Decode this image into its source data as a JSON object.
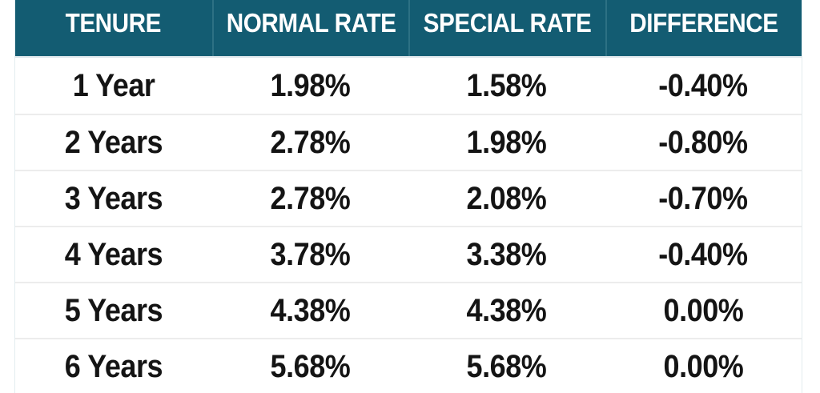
{
  "table": {
    "columns": [
      {
        "key": "tenure",
        "label": "TENURE"
      },
      {
        "key": "normal_rate",
        "label": "NORMAL RATE"
      },
      {
        "key": "special_rate",
        "label": "SPECIAL RATE"
      },
      {
        "key": "difference",
        "label": "DIFFERENCE"
      }
    ],
    "rows": [
      {
        "tenure": "1 Year",
        "normal_rate": "1.98%",
        "special_rate": "1.58%",
        "difference": "-0.40%"
      },
      {
        "tenure": "2 Years",
        "normal_rate": "2.78%",
        "special_rate": "1.98%",
        "difference": "-0.80%"
      },
      {
        "tenure": "3 Years",
        "normal_rate": "2.78%",
        "special_rate": "2.08%",
        "difference": "-0.70%"
      },
      {
        "tenure": "4 Years",
        "normal_rate": "3.78%",
        "special_rate": "3.38%",
        "difference": "-0.40%"
      },
      {
        "tenure": "5 Years",
        "normal_rate": "4.38%",
        "special_rate": "4.38%",
        "difference": "0.00%"
      },
      {
        "tenure": "6 Years",
        "normal_rate": "5.68%",
        "special_rate": "5.68%",
        "difference": "0.00%"
      }
    ]
  },
  "colors": {
    "header_bg": "#135C72",
    "header_text": "#FFFFFF",
    "header_divider": "#2D7184",
    "row_divider": "#ECECEC",
    "body_text": "#141414"
  },
  "chart_data": {
    "type": "table",
    "title": "",
    "categories": [
      "1 Year",
      "2 Years",
      "3 Years",
      "4 Years",
      "5 Years",
      "6 Years"
    ],
    "series": [
      {
        "name": "NORMAL RATE",
        "values": [
          1.98,
          2.78,
          2.78,
          3.78,
          4.38,
          5.68
        ],
        "unit": "%"
      },
      {
        "name": "SPECIAL RATE",
        "values": [
          1.58,
          1.98,
          2.08,
          3.38,
          4.38,
          5.68
        ],
        "unit": "%"
      },
      {
        "name": "DIFFERENCE",
        "values": [
          -0.4,
          -0.8,
          -0.7,
          -0.4,
          0.0,
          0.0
        ],
        "unit": "%"
      }
    ],
    "layout": {
      "header_bg": "#135C72",
      "header_text_color": "#FFFFFF",
      "row_bg": "#FFFFFF",
      "grid": "horizontal-dividers"
    }
  }
}
